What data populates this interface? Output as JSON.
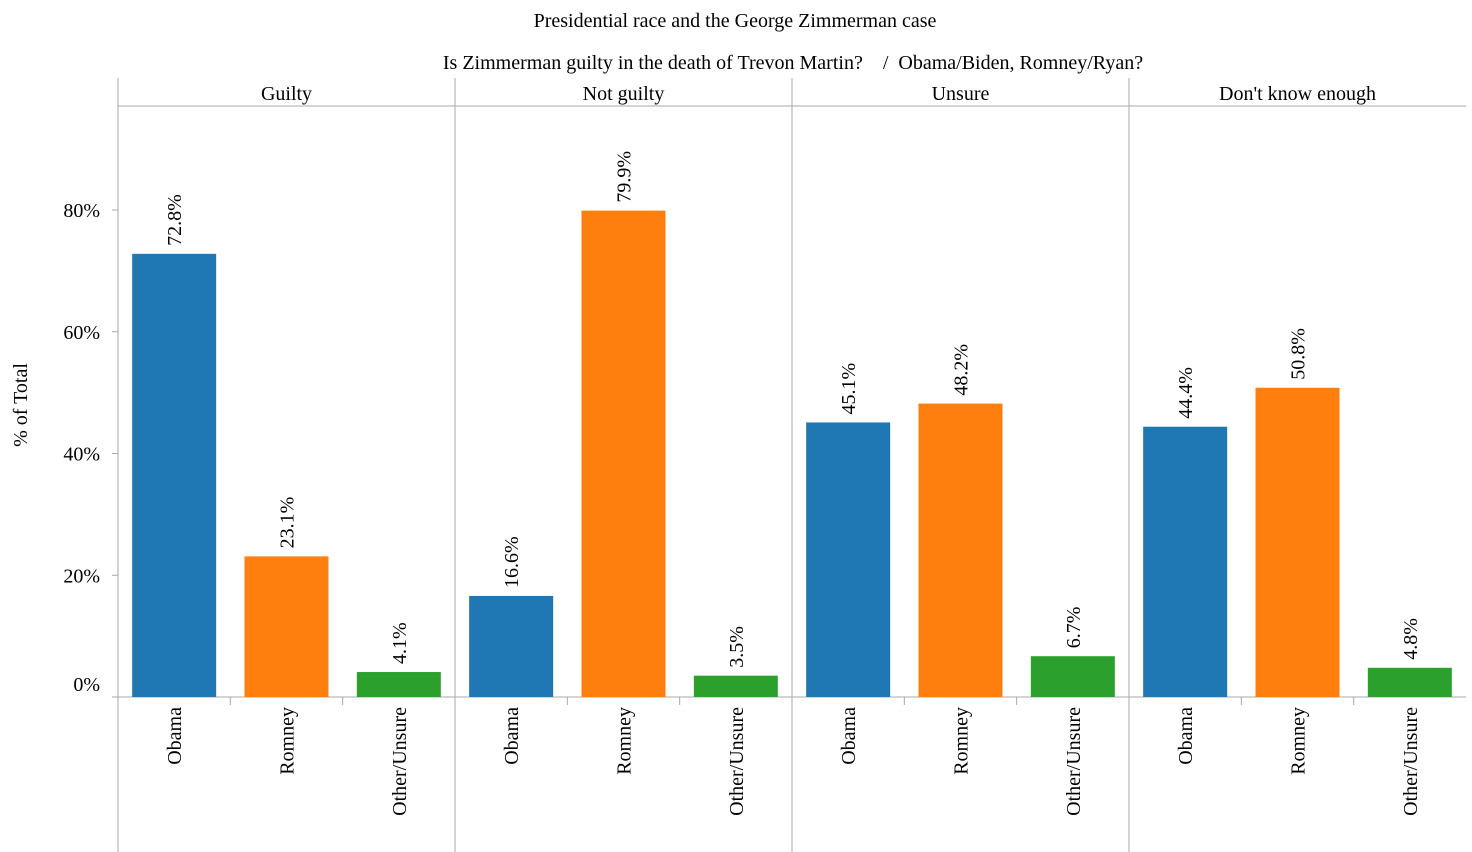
{
  "chart_data": {
    "type": "bar",
    "title": "Presidential race and the George Zimmerman case",
    "subtitle": "Is Zimmerman guilty in the death of Trevon Martin?    /  Obama/Biden, Romney/Ryan?",
    "ylabel": "% of Total",
    "ylim": [
      0,
      96
    ],
    "yticks": [
      0,
      20,
      40,
      60,
      80
    ],
    "ytick_labels": [
      "0%",
      "20%",
      "40%",
      "60%",
      "80%"
    ],
    "categories": [
      "Obama",
      "Romney",
      "Other/Unsure"
    ],
    "colors": {
      "Obama": "#1f77b4",
      "Romney": "#ff7f0e",
      "Other/Unsure": "#2ca02c"
    },
    "panels": [
      {
        "name": "Guilty",
        "values": [
          72.8,
          23.1,
          4.1
        ],
        "labels": [
          "72.8%",
          "23.1%",
          "4.1%"
        ]
      },
      {
        "name": "Not guilty",
        "values": [
          16.6,
          79.9,
          3.5
        ],
        "labels": [
          "16.6%",
          "79.9%",
          "3.5%"
        ]
      },
      {
        "name": "Unsure",
        "values": [
          45.1,
          48.2,
          6.7
        ],
        "labels": [
          "45.1%",
          "48.2%",
          "6.7%"
        ]
      },
      {
        "name": "Don't know enough",
        "values": [
          44.4,
          50.8,
          4.8
        ],
        "labels": [
          "44.4%",
          "50.8%",
          "4.8%"
        ]
      }
    ],
    "grid": false,
    "legend": "none"
  }
}
